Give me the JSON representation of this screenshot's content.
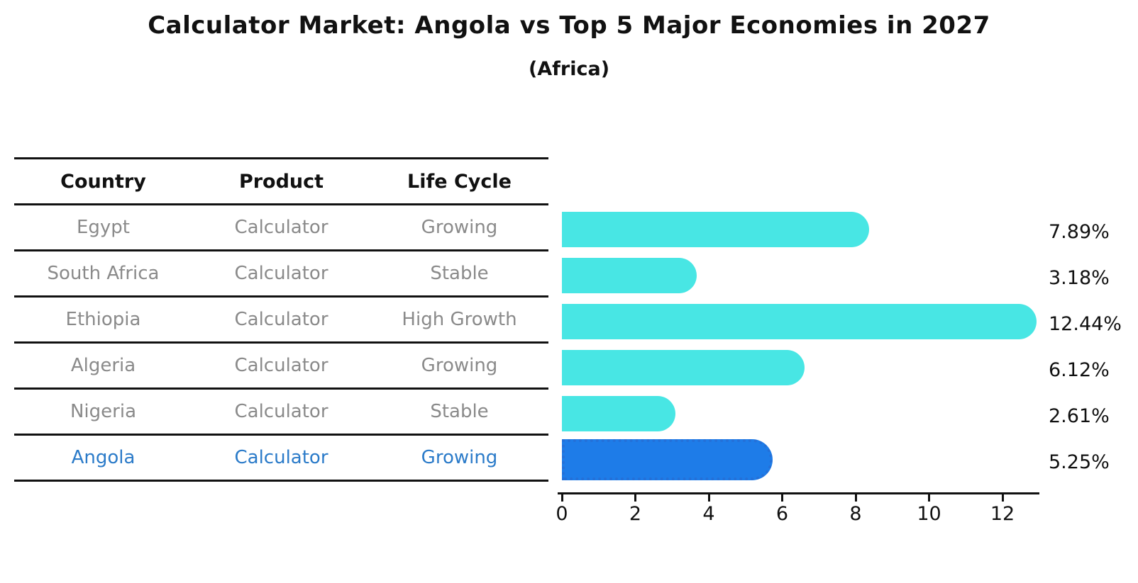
{
  "title": "Calculator Market: Angola vs Top 5 Major Economies in 2027",
  "subtitle": "(Africa)",
  "table": {
    "headers": [
      "Country",
      "Product",
      "Life Cycle"
    ],
    "rows": [
      {
        "country": "Egypt",
        "product": "Calculator",
        "life_cycle": "Growing",
        "highlight": false
      },
      {
        "country": "South Africa",
        "product": "Calculator",
        "life_cycle": "Stable",
        "highlight": false
      },
      {
        "country": "Ethiopia",
        "product": "Calculator",
        "life_cycle": "High Growth",
        "highlight": false
      },
      {
        "country": "Algeria",
        "product": "Calculator",
        "life_cycle": "Growing",
        "highlight": false
      },
      {
        "country": "Nigeria",
        "product": "Calculator",
        "life_cycle": "Stable",
        "highlight": false
      },
      {
        "country": "Angola",
        "product": "Calculator",
        "life_cycle": "Growing",
        "highlight": true
      }
    ]
  },
  "chart_data": {
    "type": "bar",
    "orientation": "horizontal",
    "title": "Calculator Market: Angola vs Top 5 Major Economies in 2027",
    "subtitle": "(Africa)",
    "categories": [
      "Egypt",
      "South Africa",
      "Ethiopia",
      "Algeria",
      "Nigeria",
      "Angola"
    ],
    "values": [
      7.89,
      3.18,
      12.44,
      6.12,
      2.61,
      5.25
    ],
    "value_labels": [
      "7.89%",
      "3.18%",
      "12.44%",
      "6.12%",
      "2.61%",
      "5.25%"
    ],
    "highlight_index": 5,
    "xticks": [
      0,
      2,
      4,
      6,
      8,
      10,
      12
    ],
    "xlim": [
      0,
      13
    ],
    "grid": false,
    "legend": false
  },
  "colors": {
    "bar": "#48e6e4",
    "highlight_bar": "#1e7ce8",
    "highlight_bar_edge": "#2470d8",
    "cell_text": "#8a8a8a",
    "highlight_text": "#2b7bc9",
    "axis": "#111111"
  }
}
